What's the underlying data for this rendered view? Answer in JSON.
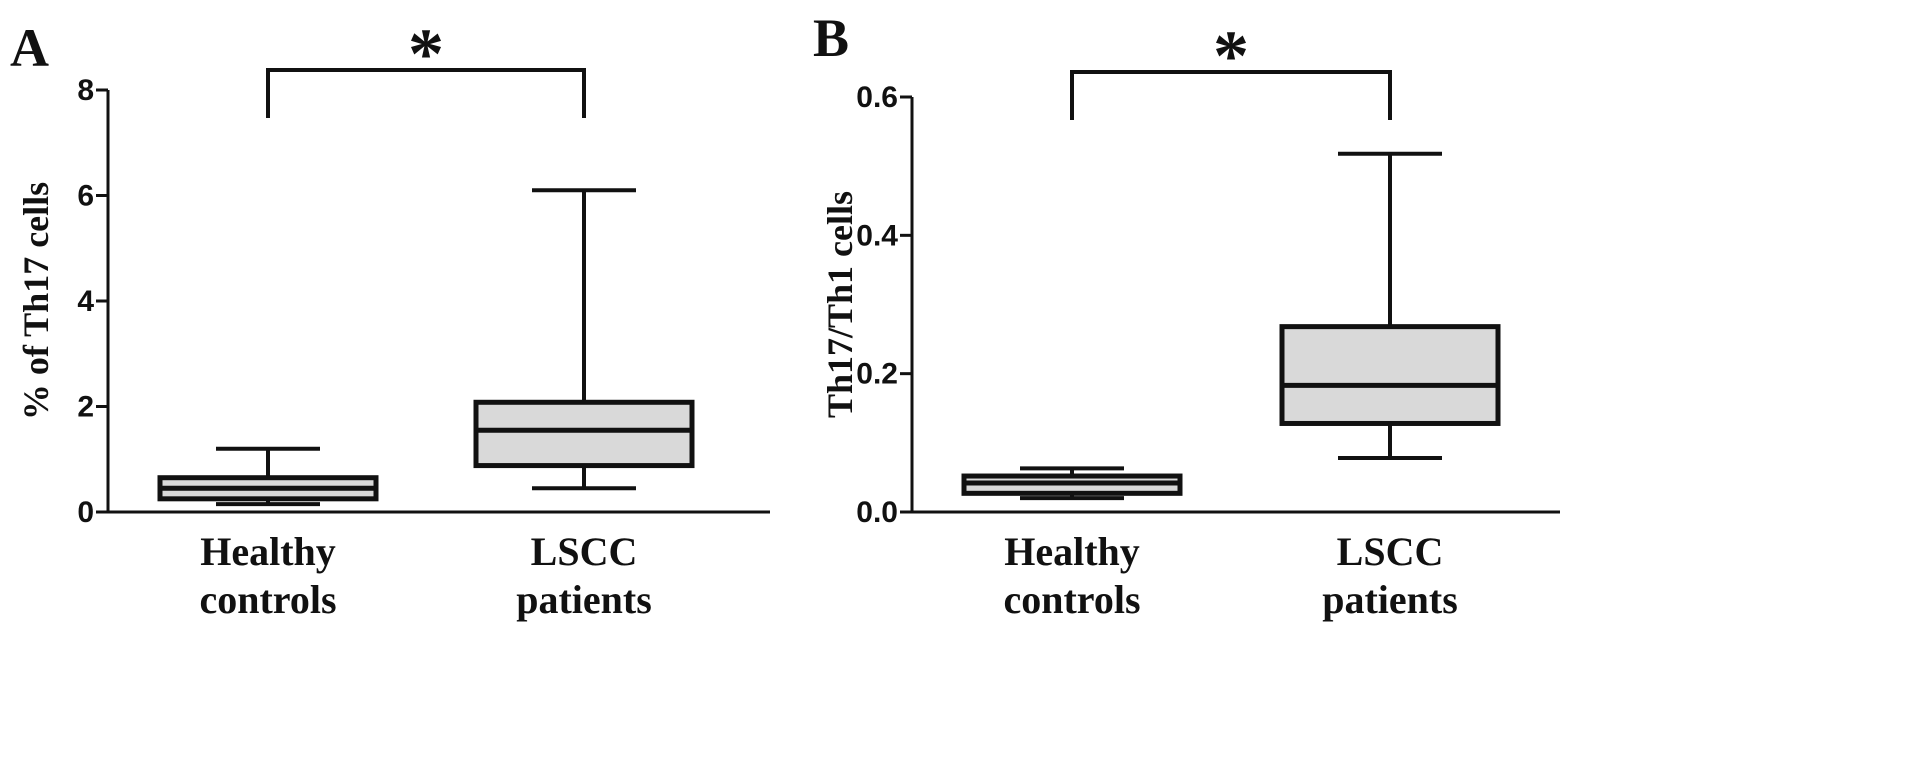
{
  "colors": {
    "box_fill": "#d9d9d9",
    "stroke": "#111111",
    "background": "#ffffff"
  },
  "chart_data": [
    {
      "type": "boxplot",
      "panel_label": "A",
      "ylabel": "% of Th17 cells",
      "ylim": [
        0,
        8
      ],
      "yticks": [
        "0",
        "2",
        "4",
        "6",
        "8"
      ],
      "categories": [
        [
          "Healthy",
          "controls"
        ],
        [
          "LSCC",
          "patients"
        ]
      ],
      "boxes": [
        {
          "whisker_low": 0.15,
          "q1": 0.25,
          "median": 0.45,
          "q3": 0.65,
          "whisker_high": 1.2
        },
        {
          "whisker_low": 0.45,
          "q1": 0.88,
          "median": 1.55,
          "q3": 2.08,
          "whisker_high": 6.1
        }
      ],
      "significance": "*"
    },
    {
      "type": "boxplot",
      "panel_label": "B",
      "ylabel": "Th17/Th1 cells",
      "ylim": [
        0,
        0.6
      ],
      "yticks": [
        "0.0",
        "0.2",
        "0.4",
        "0.6"
      ],
      "categories": [
        [
          "Healthy",
          "controls"
        ],
        [
          "LSCC",
          "patients"
        ]
      ],
      "boxes": [
        {
          "whisker_low": 0.02,
          "q1": 0.027,
          "median": 0.042,
          "q3": 0.052,
          "whisker_high": 0.063
        },
        {
          "whisker_low": 0.078,
          "q1": 0.128,
          "median": 0.183,
          "q3": 0.268,
          "whisker_high": 0.518
        }
      ],
      "significance": "*"
    }
  ]
}
